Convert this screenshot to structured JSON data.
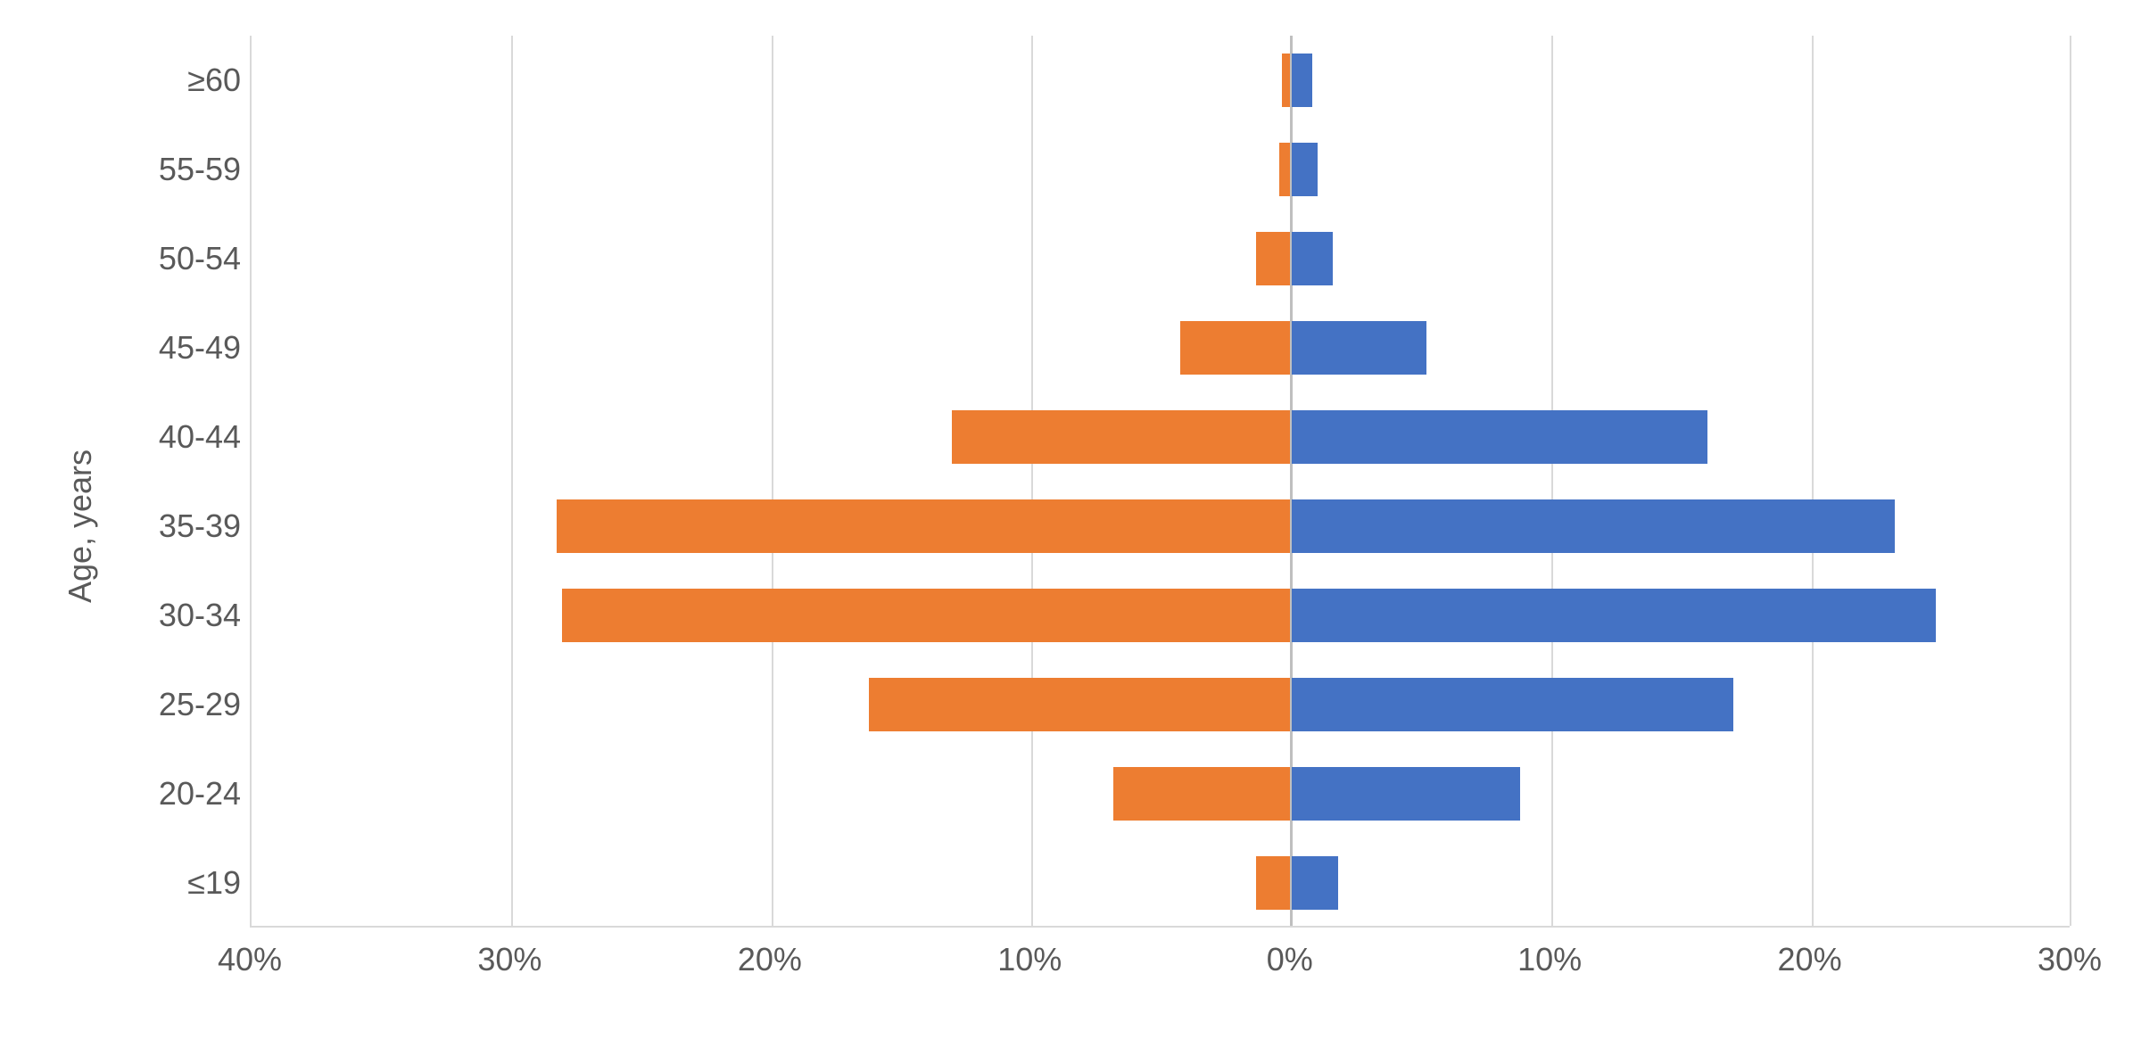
{
  "chart": {
    "type": "population-pyramid",
    "y_axis_label": "Age, years",
    "background_color": "#ffffff",
    "grid_color": "#d9d9d9",
    "center_line_color": "#bfbfbf",
    "text_color": "#595959",
    "label_fontsize": 36,
    "tick_fontsize": 36,
    "left_color": "#ed7d31",
    "right_color": "#4472c4",
    "categories": [
      "≥60",
      "55-59",
      "50-54",
      "45-49",
      "40-44",
      "35-39",
      "30-34",
      "25-29",
      "20-24",
      "≤19"
    ],
    "left_values": [
      0.3,
      0.4,
      1.3,
      4.2,
      13.0,
      28.2,
      28.0,
      16.2,
      6.8,
      1.3
    ],
    "right_values": [
      0.8,
      1.0,
      1.6,
      5.2,
      16.0,
      23.2,
      24.8,
      17.0,
      8.8,
      1.8
    ],
    "x_axis": {
      "left_max": 40,
      "right_max": 30,
      "tick_step": 10,
      "ticks_left": [
        40,
        30,
        20,
        10
      ],
      "ticks_right": [
        0,
        10,
        20,
        30
      ],
      "tick_labels_left": [
        "40%",
        "30%",
        "20%",
        "10%"
      ],
      "tick_labels_right": [
        "0%",
        "10%",
        "20%",
        "30%"
      ]
    },
    "bar_height_ratio": 0.6,
    "row_spacing": 100
  }
}
